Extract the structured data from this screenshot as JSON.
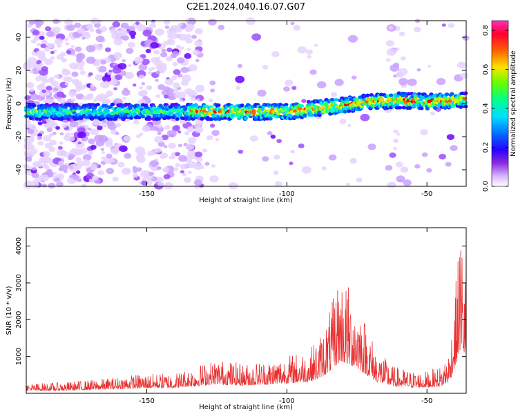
{
  "title": "C2E1.2024.040.16.07.G07",
  "colors": {
    "line": "#e83030",
    "spectrogram_palette": [
      "#ffffff",
      "#e6d2ff",
      "#c9a0ff",
      "#9b4dff",
      "#6a00ff",
      "#1a1aff",
      "#0060ff",
      "#00c8ff",
      "#00ffc8",
      "#40ff40",
      "#c8ff00",
      "#ffd000",
      "#ff6000",
      "#ff0000",
      "#ff0070",
      "#ff40c0"
    ]
  },
  "chart_data": [
    {
      "type": "heatmap",
      "xlabel": "Height of straight line (km)",
      "ylabel": "Frequency (Hz)",
      "xlim": [
        -193,
        -36
      ],
      "ylim": [
        -50,
        50
      ],
      "xticks": [
        -150,
        -100,
        -50
      ],
      "yticks": [
        -40,
        -20,
        0,
        20,
        40
      ],
      "colorbar": {
        "label": "Normalized spectral amplitude",
        "range": [
          0,
          0.85
        ],
        "ticks": [
          "0.0",
          "0.2",
          "0.4",
          "0.6",
          "0.8"
        ]
      },
      "ridge_frequency": {
        "x": [
          -190,
          -170,
          -150,
          -130,
          -110,
          -100,
          -90,
          -80,
          -70,
          -60,
          -50,
          -40
        ],
        "y": [
          -5,
          -5,
          -5,
          -5,
          -5,
          -5,
          -3,
          -1,
          1,
          2,
          1,
          2
        ]
      },
      "grid": false
    },
    {
      "type": "line",
      "xlabel": "Height of straight line (km)",
      "ylabel": "SNR (10 * v/v)",
      "xlim": [
        -193,
        -36
      ],
      "ylim": [
        0,
        4500
      ],
      "xticks": [
        -150,
        -100,
        -50
      ],
      "yticks": [
        1000,
        2000,
        3000,
        4000
      ],
      "envelope": {
        "x": [
          -193,
          -180,
          -165,
          -155,
          -140,
          -133,
          -125,
          -115,
          -105,
          -98,
          -92,
          -88,
          -84,
          -81,
          -78,
          -75,
          -72,
          -68,
          -62,
          -55,
          -50,
          -45,
          -42,
          -40,
          -38,
          -37
        ],
        "y": [
          200,
          220,
          300,
          380,
          420,
          550,
          700,
          600,
          700,
          800,
          900,
          1200,
          1800,
          2500,
          2200,
          2000,
          1500,
          900,
          550,
          450,
          450,
          550,
          900,
          2000,
          3500,
          3000
        ]
      },
      "grid": false
    }
  ]
}
